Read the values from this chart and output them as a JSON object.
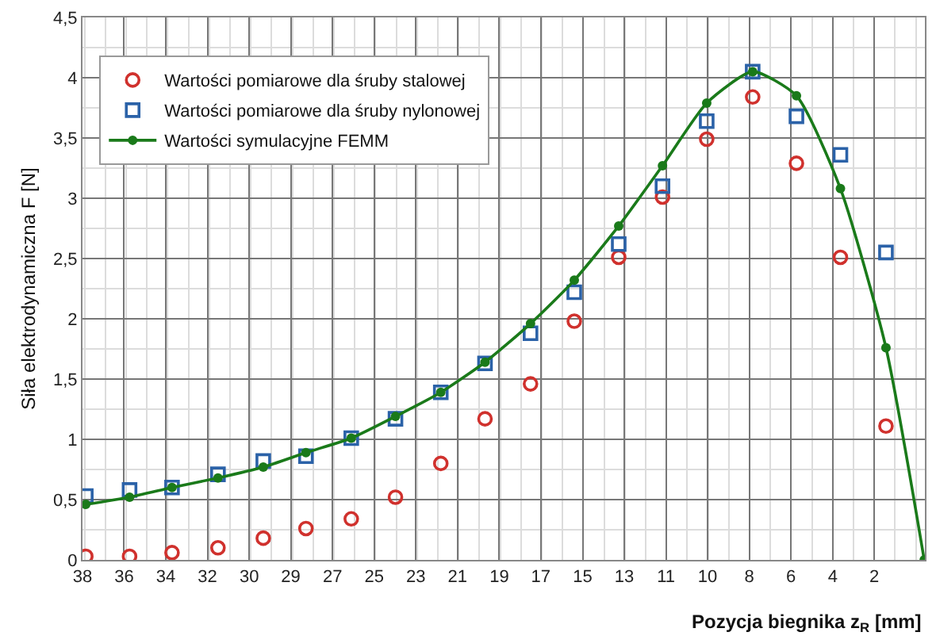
{
  "chart_data": {
    "type": "scatter",
    "xlabel": "Pozycja biegnika z$_{R}$ [mm]",
    "ylabel": "Siła elektrodynamiczna F [N]",
    "xlim": [
      38,
      -0.3
    ],
    "ylim": [
      0,
      4.5
    ],
    "xticks": [
      38,
      {
        "value": 36.11,
        "label": "36"
      },
      {
        "value": 34.21,
        "label": "34"
      },
      {
        "value": 32.32,
        "label": "32"
      },
      {
        "value": 30.42,
        "label": "30"
      },
      {
        "value": 28.53,
        "label": "29"
      },
      {
        "value": 26.63,
        "label": "27"
      },
      {
        "value": 24.74,
        "label": "25"
      },
      {
        "value": 22.84,
        "label": "23"
      },
      {
        "value": 20.95,
        "label": "21"
      },
      {
        "value": 19.05,
        "label": "19"
      },
      {
        "value": 17.16,
        "label": "17"
      },
      {
        "value": 15.26,
        "label": "15"
      },
      {
        "value": 13.37,
        "label": "13"
      },
      {
        "value": 11.47,
        "label": "11"
      },
      {
        "value": 9.58,
        "label": "10"
      },
      {
        "value": 7.68,
        "label": "8"
      },
      {
        "value": 5.79,
        "label": "6"
      },
      {
        "value": 3.89,
        "label": "4"
      },
      2
    ],
    "yticks": [
      0,
      {
        "value": 0.5,
        "label": "0,5"
      },
      1,
      {
        "value": 1.5,
        "label": "1,5"
      },
      2,
      {
        "value": 2.5,
        "label": "2,5"
      },
      3,
      {
        "value": 3.5,
        "label": "3,5"
      },
      4,
      {
        "value": 4.5,
        "label": "4,5"
      }
    ],
    "grid": true,
    "legend": "top left",
    "x": [
      37.85,
      35.86,
      33.93,
      31.84,
      29.78,
      27.84,
      25.78,
      23.77,
      21.71,
      19.7,
      17.63,
      15.64,
      13.62,
      11.63,
      9.62,
      7.53,
      5.54,
      3.54,
      1.47
    ],
    "series": [
      {
        "name": "Wartości pomiarowe dla śruby stalowej",
        "color": "#d0312d",
        "marker": "circle",
        "values": [
          0.03,
          0.03,
          0.06,
          0.1,
          0.18,
          0.26,
          0.34,
          0.52,
          0.8,
          1.17,
          1.46,
          1.98,
          2.51,
          3.01,
          3.49,
          3.84,
          3.29,
          2.51,
          1.11
        ]
      },
      {
        "name": "Wartości pomiarowe dla śruby nylonowej",
        "color": "#2b62a8",
        "marker": "square",
        "values": [
          0.53,
          0.58,
          0.6,
          0.71,
          0.82,
          0.86,
          1.01,
          1.17,
          1.39,
          1.63,
          1.88,
          2.22,
          2.62,
          3.1,
          3.64,
          4.05,
          3.68,
          3.36,
          2.55
        ]
      },
      {
        "name": "Wartości symulacyjne FEMM",
        "color": "#1a7a1a",
        "type": "line",
        "marker": "circle",
        "line_style": "solid",
        "x": [
          37.85,
          35.86,
          33.93,
          31.84,
          29.78,
          27.84,
          25.78,
          23.77,
          21.71,
          19.7,
          17.63,
          15.64,
          13.62,
          11.63,
          9.62,
          7.53,
          5.54,
          3.54,
          1.47,
          -0.27
        ],
        "values": [
          0.46,
          0.52,
          0.6,
          0.68,
          0.77,
          0.89,
          1.01,
          1.19,
          1.39,
          1.64,
          1.96,
          2.32,
          2.77,
          3.27,
          3.79,
          4.05,
          3.85,
          3.08,
          1.76,
          0.0
        ]
      }
    ]
  }
}
